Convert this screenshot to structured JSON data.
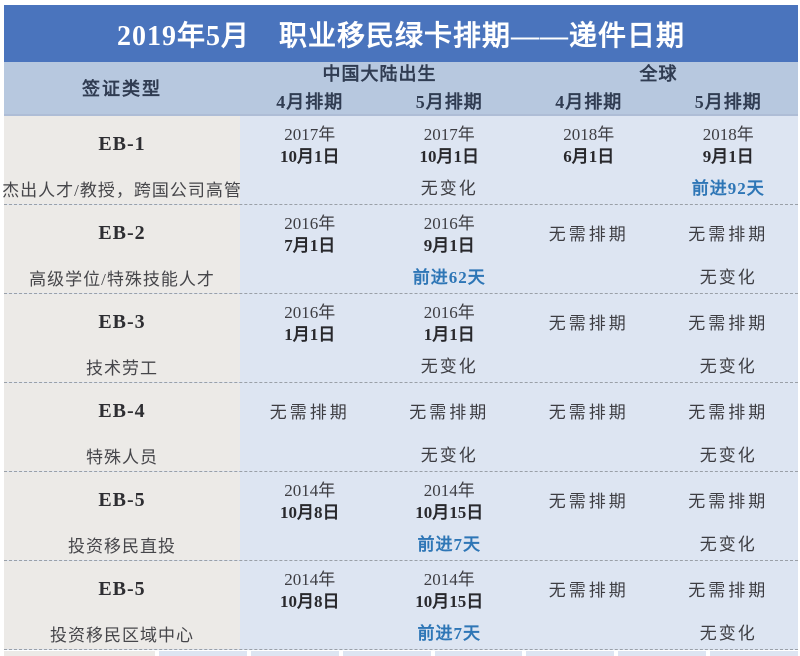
{
  "title": "2019年5月　职业移民绿卡排期——递件日期",
  "colors": {
    "banner_blue": "#4a74bd",
    "header_band_blue": "#b7c8df",
    "data_cell_blue": "#dde5f2",
    "visa_column_gray": "#eceae7",
    "advance_text_blue": "#2e76b6",
    "body_text_dark": "#3d3d42"
  },
  "table": {
    "visa_type_header": "签证类型",
    "group_headers": [
      "中国大陆出生",
      "全球"
    ],
    "sub_headers": [
      "4月排期",
      "5月排期",
      "4月排期",
      "5月排期"
    ],
    "rows": [
      {
        "code": "EB-1",
        "category": "杰出人才/教授，跨国公司高管",
        "cells": [
          {
            "year": "2017年",
            "day": "10月1日"
          },
          {
            "year": "2017年",
            "day": "10月1日"
          },
          {
            "year": "2018年",
            "day": "6月1日"
          },
          {
            "year": "2018年",
            "day": "9月1日"
          }
        ],
        "changes": [
          {
            "text": "无变化",
            "type": "none"
          },
          {
            "text": "前进92天",
            "type": "advance"
          }
        ]
      },
      {
        "code": "EB-2",
        "category": "高级学位/特殊技能人才",
        "cells": [
          {
            "year": "2016年",
            "day": "7月1日"
          },
          {
            "year": "2016年",
            "day": "9月1日"
          },
          {
            "text": "无需排期"
          },
          {
            "text": "无需排期"
          }
        ],
        "changes": [
          {
            "text": "前进62天",
            "type": "advance"
          },
          {
            "text": "无变化",
            "type": "none"
          }
        ]
      },
      {
        "code": "EB-3",
        "category": "技术劳工",
        "cells": [
          {
            "year": "2016年",
            "day": "1月1日"
          },
          {
            "year": "2016年",
            "day": "1月1日"
          },
          {
            "text": "无需排期"
          },
          {
            "text": "无需排期"
          }
        ],
        "changes": [
          {
            "text": "无变化",
            "type": "none"
          },
          {
            "text": "无变化",
            "type": "none"
          }
        ]
      },
      {
        "code": "EB-4",
        "category": "特殊人员",
        "cells": [
          {
            "text": "无需排期"
          },
          {
            "text": "无需排期"
          },
          {
            "text": "无需排期"
          },
          {
            "text": "无需排期"
          }
        ],
        "changes": [
          {
            "text": "无变化",
            "type": "none"
          },
          {
            "text": "无变化",
            "type": "none"
          }
        ]
      },
      {
        "code": "EB-5",
        "category": "投资移民直投",
        "cells": [
          {
            "year": "2014年",
            "day": "10月8日"
          },
          {
            "year": "2014年",
            "day": "10月15日"
          },
          {
            "text": "无需排期"
          },
          {
            "text": "无需排期"
          }
        ],
        "changes": [
          {
            "text": "前进7天",
            "type": "advance"
          },
          {
            "text": "无变化",
            "type": "none"
          }
        ]
      },
      {
        "code": "EB-5",
        "category": "投资移民区域中心",
        "cells": [
          {
            "year": "2014年",
            "day": "10月8日"
          },
          {
            "year": "2014年",
            "day": "10月15日"
          },
          {
            "text": "无需排期"
          },
          {
            "text": "无需排期"
          }
        ],
        "changes": [
          {
            "text": "前进7天",
            "type": "advance"
          },
          {
            "text": "无变化",
            "type": "none"
          }
        ]
      }
    ]
  }
}
